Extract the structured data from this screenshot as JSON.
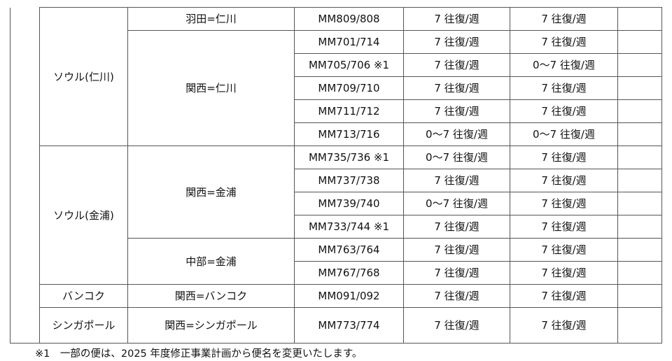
{
  "groups": [
    {
      "destination": "ソウル(仁川)",
      "routes": [
        {
          "route": "羽田=仁川",
          "flights": [
            {
              "flight": "MM809/808",
              "current": "7 往復/週",
              "revised": "7 往復/週",
              "note": ""
            }
          ]
        },
        {
          "route": "関西=仁川",
          "flights": [
            {
              "flight": "MM701/714",
              "current": "7 往復/週",
              "revised": "7 往復/週",
              "note": ""
            },
            {
              "flight": "MM705/706 ※1",
              "current": "7 往復/週",
              "revised": "0～7 往復/週",
              "note": ""
            },
            {
              "flight": "MM709/710",
              "current": "7 往復/週",
              "revised": "7 往復/週",
              "note": ""
            },
            {
              "flight": "MM711/712",
              "current": "7 往復/週",
              "revised": "7 往復/週",
              "note": ""
            },
            {
              "flight": "MM713/716",
              "current": "0～7 往復/週",
              "revised": "0～7 往復/週",
              "note": ""
            }
          ]
        }
      ]
    },
    {
      "destination": "ソウル(金浦)",
      "routes": [
        {
          "route": "関西=金浦",
          "flights": [
            {
              "flight": "MM735/736 ※1",
              "current": "0～7 往復/週",
              "revised": "7 往復/週",
              "note": ""
            },
            {
              "flight": "MM737/738",
              "current": "7 往復/週",
              "revised": "7 往復/週",
              "note": ""
            },
            {
              "flight": "MM739/740",
              "current": "0～7 往復/週",
              "revised": "7 往復/週",
              "note": ""
            },
            {
              "flight": "MM733/744 ※1",
              "current": "7 往復/週",
              "revised": "7 往復/週",
              "note": ""
            }
          ]
        },
        {
          "route": "中部=金浦",
          "flights": [
            {
              "flight": "MM763/764",
              "current": "7 往復/週",
              "revised": "7 往復/週",
              "note": ""
            },
            {
              "flight": "MM767/768",
              "current": "7 往復/週",
              "revised": "7 往復/週",
              "note": ""
            }
          ]
        }
      ]
    },
    {
      "destination": "バンコク",
      "routes": [
        {
          "route": "関西=バンコク",
          "flights": [
            {
              "flight": "MM091/092",
              "current": "7 往復/週",
              "revised": "7 往復/週",
              "note": ""
            }
          ]
        }
      ]
    },
    {
      "destination": "シンガポール",
      "routes": [
        {
          "route": "関西=シンガポール",
          "flights": [
            {
              "flight": "MM773/774",
              "current": "7 往復/週",
              "revised": "7 往復/週",
              "note": ""
            }
          ]
        }
      ]
    }
  ],
  "footnote": "※1　一部の便は、2025 年度修正事業計画から便名を変更いたします。"
}
